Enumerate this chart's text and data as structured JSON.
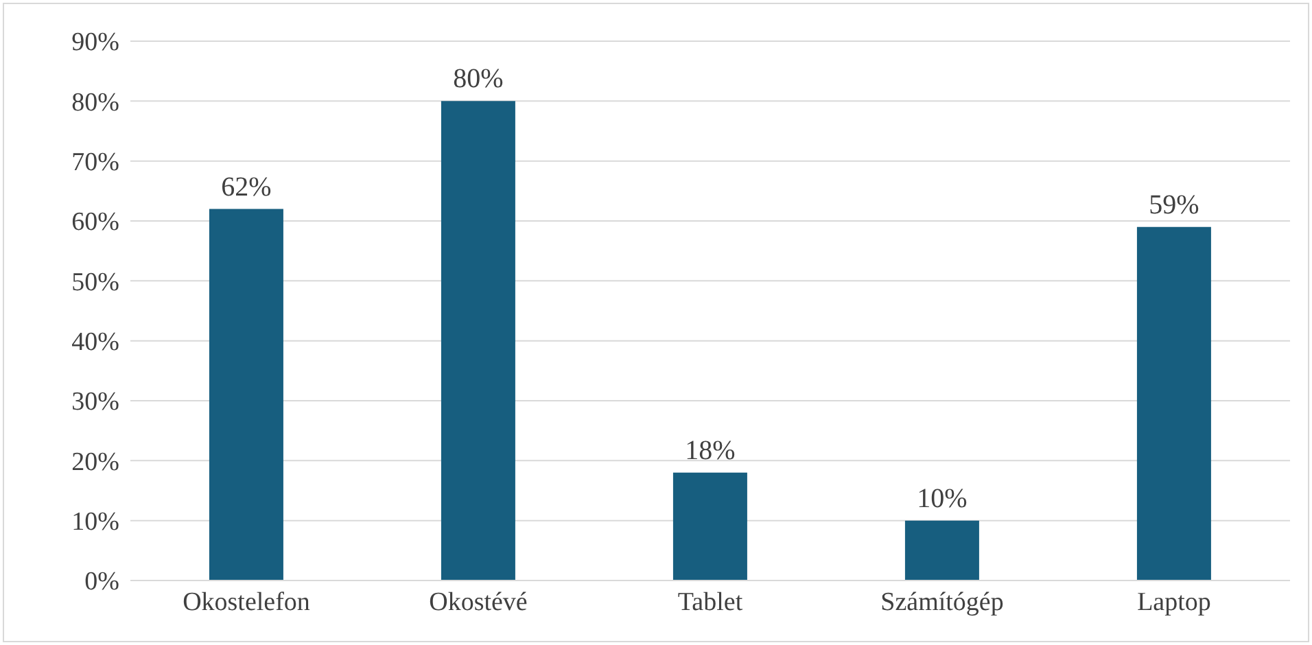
{
  "chart_data": {
    "type": "bar",
    "categories": [
      "Okostelefon",
      "Okostévé",
      "Tablet",
      "Számítógép",
      "Laptop"
    ],
    "values": [
      62,
      80,
      18,
      10,
      59
    ],
    "value_labels": [
      "62%",
      "80%",
      "18%",
      "10%",
      "59%"
    ],
    "color": "#175e7f",
    "ylim": [
      0,
      90
    ],
    "yticks": [
      {
        "value": 0,
        "label": "0%"
      },
      {
        "value": 10,
        "label": "10%"
      },
      {
        "value": 20,
        "label": "20%"
      },
      {
        "value": 30,
        "label": "30%"
      },
      {
        "value": 40,
        "label": "40%"
      },
      {
        "value": 50,
        "label": "50%"
      },
      {
        "value": 60,
        "label": "60%"
      },
      {
        "value": 70,
        "label": "70%"
      },
      {
        "value": 80,
        "label": "80%"
      },
      {
        "value": 90,
        "label": "90%"
      }
    ],
    "grid": "y",
    "legend": false
  }
}
